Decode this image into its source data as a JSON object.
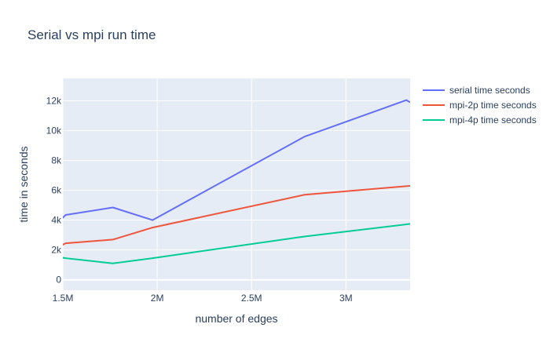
{
  "chart_data": {
    "type": "line",
    "title": "Serial vs mpi run time",
    "xlabel": "number of edges",
    "ylabel": "time in seconds",
    "xlim": [
      1500000,
      3340000
    ],
    "ylim": [
      -700,
      13500
    ],
    "x_ticks": [
      {
        "value": 1500000,
        "label": "1.5M"
      },
      {
        "value": 2000000,
        "label": "2M"
      },
      {
        "value": 2500000,
        "label": "2.5M"
      },
      {
        "value": 3000000,
        "label": "3M"
      }
    ],
    "y_ticks": [
      {
        "value": 0,
        "label": "0"
      },
      {
        "value": 2000,
        "label": "2k"
      },
      {
        "value": 4000,
        "label": "4k"
      },
      {
        "value": 6000,
        "label": "6k"
      },
      {
        "value": 8000,
        "label": "8k"
      },
      {
        "value": 10000,
        "label": "10k"
      },
      {
        "value": 12000,
        "label": "12k"
      }
    ],
    "grid": true,
    "legend_position": "top-right",
    "plot_background": "#e5ecf6",
    "series": [
      {
        "name": "serial time seconds",
        "color": "#636efa",
        "points": [
          [
            1490000,
            4050
          ],
          [
            1515000,
            4350
          ],
          [
            1765000,
            4850
          ],
          [
            1975000,
            4000
          ],
          [
            2780000,
            9600
          ],
          [
            3320000,
            12050
          ],
          [
            3340000,
            11900
          ]
        ]
      },
      {
        "name": "mpi-2p time seconds",
        "color": "#ef553b",
        "points": [
          [
            1490000,
            2300
          ],
          [
            1515000,
            2450
          ],
          [
            1765000,
            2700
          ],
          [
            1975000,
            3500
          ],
          [
            2780000,
            5700
          ],
          [
            3340000,
            6300
          ]
        ]
      },
      {
        "name": "mpi-4p time seconds",
        "color": "#00cc96",
        "points": [
          [
            1490000,
            1500
          ],
          [
            1515000,
            1450
          ],
          [
            1765000,
            1100
          ],
          [
            1975000,
            1450
          ],
          [
            2780000,
            2900
          ],
          [
            3340000,
            3750
          ]
        ]
      }
    ]
  }
}
